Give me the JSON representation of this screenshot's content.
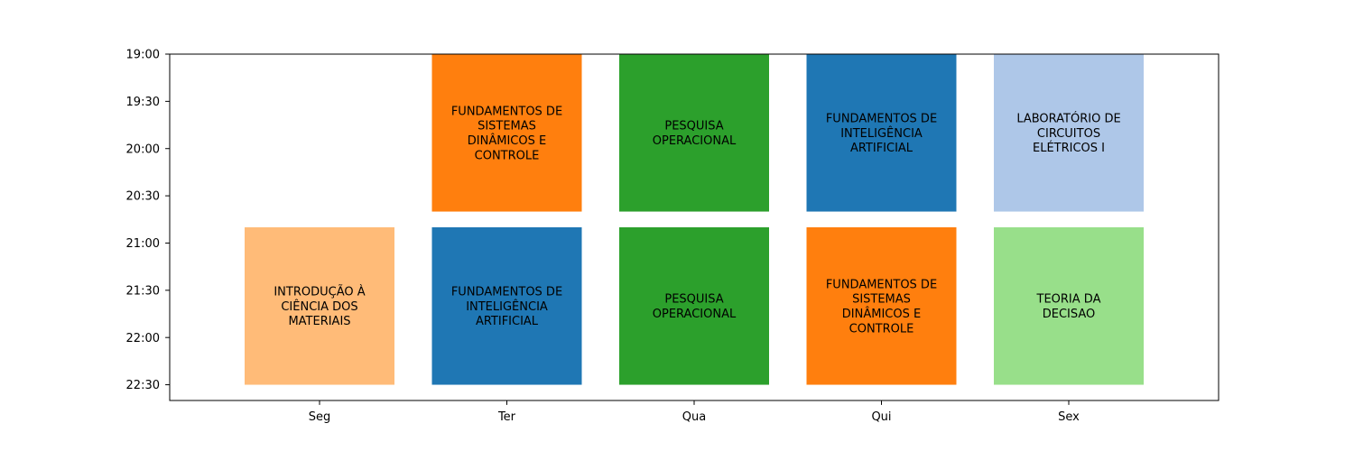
{
  "chart_data": {
    "type": "timetable",
    "title": "",
    "xlabel": "",
    "ylabel": "",
    "days": [
      "Seg",
      "Ter",
      "Qua",
      "Qui",
      "Sex"
    ],
    "y_ticks": [
      "19:00",
      "19:30",
      "20:00",
      "20:30",
      "21:00",
      "21:30",
      "22:00",
      "22:30"
    ],
    "ylim": [
      "19:00",
      "22:40"
    ],
    "grid": false,
    "inverted_y": true,
    "sessions": [
      {
        "day": "Ter",
        "start": "19:00",
        "end": "20:40",
        "label": "FUNDAMENTOS DE SISTEMAS DINÂMICOS E CONTROLE",
        "lines": [
          "FUNDAMENTOS DE",
          "SISTEMAS",
          "DINÂMICOS E",
          "CONTROLE"
        ],
        "color": "#ff7f0e"
      },
      {
        "day": "Qua",
        "start": "19:00",
        "end": "20:40",
        "label": "PESQUISA OPERACIONAL",
        "lines": [
          "PESQUISA",
          "OPERACIONAL"
        ],
        "color": "#2ca02c"
      },
      {
        "day": "Qui",
        "start": "19:00",
        "end": "20:40",
        "label": "FUNDAMENTOS DE INTELIGÊNCIA ARTIFICIAL",
        "lines": [
          "FUNDAMENTOS DE",
          "INTELIGÊNCIA",
          "ARTIFICIAL"
        ],
        "color": "#1f77b4"
      },
      {
        "day": "Sex",
        "start": "19:00",
        "end": "20:40",
        "label": "LABORATÓRIO DE CIRCUITOS ELÉTRICOS I",
        "lines": [
          "LABORATÓRIO DE",
          "CIRCUITOS",
          "ELÉTRICOS I"
        ],
        "color": "#aec7e8"
      },
      {
        "day": "Seg",
        "start": "20:50",
        "end": "22:30",
        "label": "INTRODUÇÃO À CIÊNCIA DOS MATERIAIS",
        "lines": [
          "INTRODUÇÃO À",
          "CIÊNCIA DOS",
          "MATERIAIS"
        ],
        "color": "#ffbb78"
      },
      {
        "day": "Ter",
        "start": "20:50",
        "end": "22:30",
        "label": "FUNDAMENTOS DE INTELIGÊNCIA ARTIFICIAL",
        "lines": [
          "FUNDAMENTOS DE",
          "INTELIGÊNCIA",
          "ARTIFICIAL"
        ],
        "color": "#1f77b4"
      },
      {
        "day": "Qua",
        "start": "20:50",
        "end": "22:30",
        "label": "PESQUISA OPERACIONAL",
        "lines": [
          "PESQUISA",
          "OPERACIONAL"
        ],
        "color": "#2ca02c"
      },
      {
        "day": "Qui",
        "start": "20:50",
        "end": "22:30",
        "label": "FUNDAMENTOS DE SISTEMAS DINÂMICOS E CONTROLE",
        "lines": [
          "FUNDAMENTOS DE",
          "SISTEMAS",
          "DINÂMICOS E",
          "CONTROLE"
        ],
        "color": "#ff7f0e"
      },
      {
        "day": "Sex",
        "start": "20:50",
        "end": "22:30",
        "label": "TEORIA DA DECISAO",
        "lines": [
          "TEORIA DA",
          "DECISAO"
        ],
        "color": "#98df8a"
      }
    ]
  }
}
